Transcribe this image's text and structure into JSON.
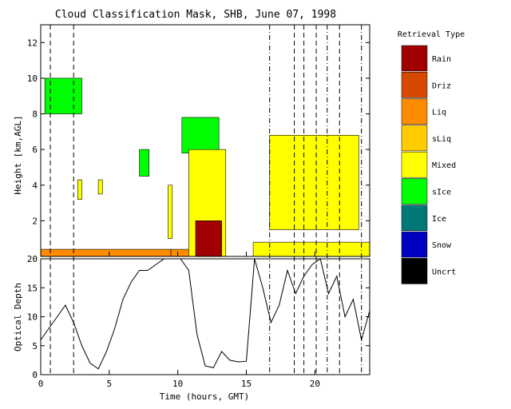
{
  "chart_data": {
    "type": "heatmap",
    "title": "Cloud Classification Mask, SHB, June 07, 1998",
    "xlabel": "Time (hours, GMT)",
    "xlim": [
      0,
      24
    ],
    "x_ticks": [
      "0",
      "5",
      "10",
      "15",
      "20"
    ],
    "panels": [
      {
        "name": "mask",
        "ylabel": "Height [km,AGL]",
        "ylim": [
          0,
          13
        ],
        "y_ticks": [
          "2",
          "4",
          "6",
          "8",
          "10",
          "12"
        ],
        "regions": [
          {
            "class": "Liq",
            "x": [
              0,
              9.5
            ],
            "y": [
              0,
              0.4
            ]
          },
          {
            "class": "Liq",
            "x": [
              9.5,
              11.3
            ],
            "y": [
              0,
              0.4
            ]
          },
          {
            "class": "Mixed",
            "x": [
              15.5,
              24
            ],
            "y": [
              0,
              0.8
            ]
          },
          {
            "class": "sIce",
            "x": [
              0.3,
              3.0
            ],
            "y": [
              8.0,
              10.0
            ]
          },
          {
            "class": "sIce",
            "x": [
              7.2,
              7.9
            ],
            "y": [
              4.5,
              6.0
            ]
          },
          {
            "class": "sIce",
            "x": [
              10.3,
              13.0
            ],
            "y": [
              5.8,
              7.8
            ]
          },
          {
            "class": "Mixed",
            "x": [
              10.8,
              13.5
            ],
            "y": [
              0,
              6.0
            ]
          },
          {
            "class": "Rain",
            "x": [
              11.3,
              13.2
            ],
            "y": [
              0,
              2.0
            ]
          },
          {
            "class": "Mixed",
            "x": [
              16.7,
              23.2
            ],
            "y": [
              1.5,
              6.8
            ]
          },
          {
            "class": "Mixed",
            "x": [
              9.3,
              9.6
            ],
            "y": [
              1.0,
              4.0
            ]
          },
          {
            "class": "Mixed",
            "x": [
              4.2,
              4.5
            ],
            "y": [
              3.5,
              4.3
            ]
          },
          {
            "class": "Mixed",
            "x": [
              2.7,
              3.0
            ],
            "y": [
              3.2,
              4.3
            ]
          }
        ]
      },
      {
        "name": "optical-depth",
        "ylabel": "Optical Depth",
        "ylim": [
          0,
          20
        ],
        "y_ticks": [
          "0",
          "5",
          "10",
          "15",
          "20"
        ],
        "series": [
          {
            "x": [
              0,
              0.6,
              1.2,
              1.8,
              2.4,
              3.0,
              3.6,
              4.2,
              4.8,
              5.4,
              6.0,
              6.6,
              7.2,
              7.8,
              8.4,
              9.0,
              9.6,
              10.2,
              10.8,
              11.4,
              12.0,
              12.6,
              13.2,
              13.8,
              14.4,
              15.0,
              15.6,
              16.2,
              16.8,
              17.4,
              18.0,
              18.6,
              19.2,
              19.8,
              20.4,
              21.0,
              21.6,
              22.2,
              22.8,
              23.4,
              24.0
            ],
            "y": [
              6,
              8,
              10,
              12,
              9,
              5,
              2,
              1,
              4,
              8,
              13,
              16,
              18,
              18,
              19,
              20,
              20,
              20,
              18,
              7,
              1.5,
              1.2,
              4,
              2.5,
              2.2,
              2.3,
              20,
              15,
              9,
              12,
              18,
              14,
              17,
              19,
              20,
              14,
              17,
              10,
              13,
              6,
              11
            ]
          }
        ]
      }
    ],
    "vlines": [
      {
        "x": 0.7,
        "style": "dashed"
      },
      {
        "x": 2.4,
        "style": "dashed"
      },
      {
        "x": 16.7,
        "style": "dash-dot"
      },
      {
        "x": 18.5,
        "style": "dashed"
      },
      {
        "x": 19.2,
        "style": "dashed"
      },
      {
        "x": 20.1,
        "style": "dashed"
      },
      {
        "x": 20.9,
        "style": "dash-dot"
      },
      {
        "x": 21.8,
        "style": "dashed"
      },
      {
        "x": 23.4,
        "style": "dash-dot"
      }
    ],
    "legend": {
      "title": "Retrieval Type",
      "placement": "right",
      "entries": [
        {
          "label": "Rain",
          "color": "#a00000"
        },
        {
          "label": "Driz",
          "color": "#d54a00"
        },
        {
          "label": "Liq",
          "color": "#ff8c00"
        },
        {
          "label": "sLiq",
          "color": "#ffcc00"
        },
        {
          "label": "Mixed",
          "color": "#ffff00"
        },
        {
          "label": "sIce",
          "color": "#00ff00"
        },
        {
          "label": "Ice",
          "color": "#007878"
        },
        {
          "label": "Snow",
          "color": "#0000c0"
        },
        {
          "label": "Uncrt",
          "color": "#000000"
        }
      ]
    }
  }
}
